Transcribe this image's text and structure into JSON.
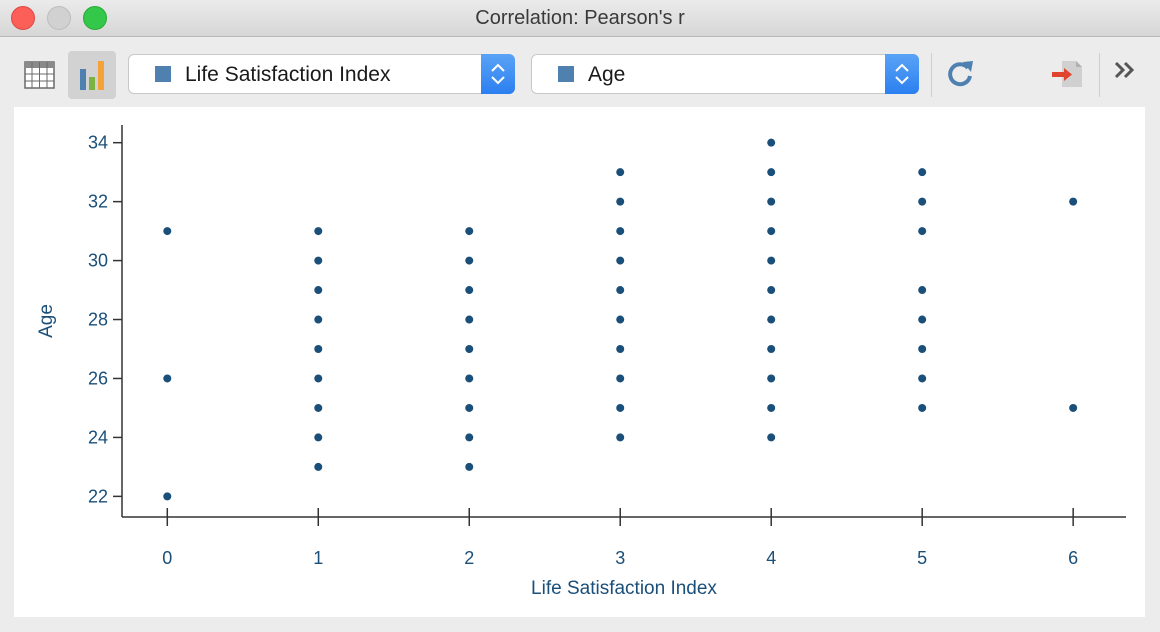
{
  "window": {
    "title": "Correlation: Pearson's r"
  },
  "toolbar": {
    "x_variable": {
      "label": "Life Satisfaction Index",
      "swatch_color": "#4f81b0"
    },
    "y_variable": {
      "label": "Age",
      "swatch_color": "#4f81b0"
    }
  },
  "chart_data": {
    "type": "scatter",
    "xlabel": "Life Satisfaction Index",
    "ylabel": "Age",
    "xlim": [
      -0.3,
      6.35
    ],
    "ylim": [
      21.3,
      34.6
    ],
    "x_ticks": [
      0,
      1,
      2,
      3,
      4,
      5,
      6
    ],
    "y_ticks": [
      22,
      24,
      26,
      28,
      30,
      32,
      34
    ],
    "marker_color": "#1a4f7a",
    "axis_color": "#1a4f7a",
    "points": [
      [
        0,
        31
      ],
      [
        0,
        26
      ],
      [
        0,
        22
      ],
      [
        1,
        31
      ],
      [
        1,
        30
      ],
      [
        1,
        29
      ],
      [
        1,
        28
      ],
      [
        1,
        27
      ],
      [
        1,
        26
      ],
      [
        1,
        25
      ],
      [
        1,
        24
      ],
      [
        1,
        23
      ],
      [
        2,
        31
      ],
      [
        2,
        30
      ],
      [
        2,
        29
      ],
      [
        2,
        28
      ],
      [
        2,
        27
      ],
      [
        2,
        26
      ],
      [
        2,
        25
      ],
      [
        2,
        24
      ],
      [
        2,
        23
      ],
      [
        3,
        33
      ],
      [
        3,
        32
      ],
      [
        3,
        31
      ],
      [
        3,
        30
      ],
      [
        3,
        29
      ],
      [
        3,
        28
      ],
      [
        3,
        27
      ],
      [
        3,
        26
      ],
      [
        3,
        25
      ],
      [
        3,
        24
      ],
      [
        4,
        34
      ],
      [
        4,
        33
      ],
      [
        4,
        32
      ],
      [
        4,
        31
      ],
      [
        4,
        30
      ],
      [
        4,
        29
      ],
      [
        4,
        28
      ],
      [
        4,
        27
      ],
      [
        4,
        26
      ],
      [
        4,
        25
      ],
      [
        4,
        24
      ],
      [
        5,
        33
      ],
      [
        5,
        32
      ],
      [
        5,
        31
      ],
      [
        5,
        29
      ],
      [
        5,
        28
      ],
      [
        5,
        27
      ],
      [
        5,
        26
      ],
      [
        5,
        25
      ],
      [
        6,
        32
      ],
      [
        6,
        25
      ]
    ]
  }
}
